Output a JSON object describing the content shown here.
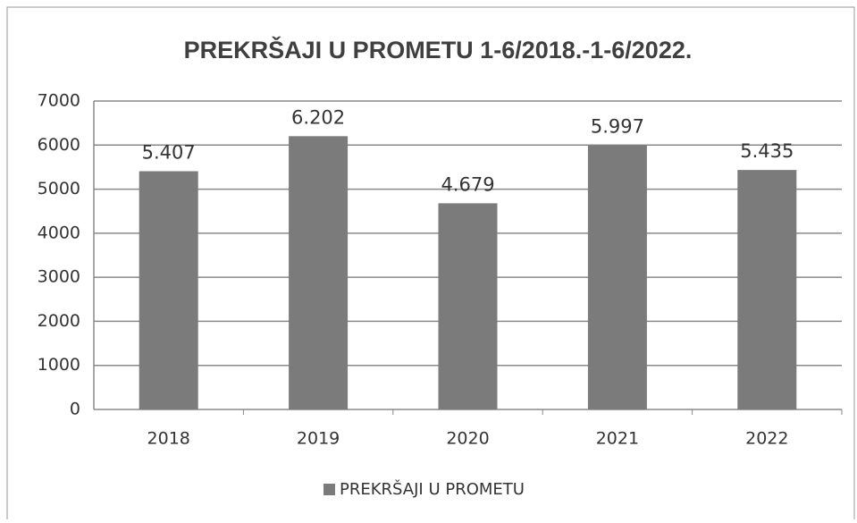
{
  "chart_data": {
    "type": "bar",
    "title": "PREKRŠAJI U PROMETU 1-6/2018.-1-6/2022.",
    "categories": [
      "2018",
      "2019",
      "2020",
      "2021",
      "2022"
    ],
    "series": [
      {
        "name": "PREKRŠAJI U PROMETU",
        "color": "#7b7b7b",
        "values": [
          5407,
          6202,
          4679,
          5997,
          5435
        ],
        "value_labels": [
          "5.407",
          "6.202",
          "4.679",
          "5.997",
          "5.435"
        ]
      }
    ],
    "ylim": [
      0,
      7000
    ],
    "yticks": [
      0,
      1000,
      2000,
      3000,
      4000,
      5000,
      6000,
      7000
    ],
    "grid": true,
    "legend": "bottom"
  }
}
